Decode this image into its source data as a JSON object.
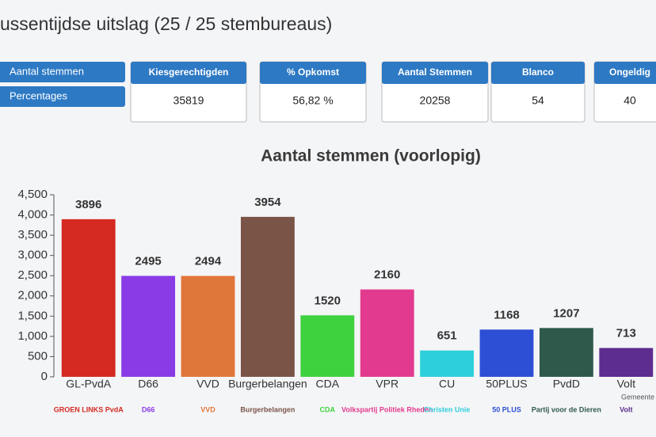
{
  "header": {
    "title": "ussentijdse uitslag (25 / 25 stembureaus)"
  },
  "buttons": [
    "Aantal stemmen",
    "Percentages"
  ],
  "stats": [
    {
      "label": "Kiesgerechtigden",
      "value": "35819"
    },
    {
      "label": "% Opkomst",
      "value": "56,82 %"
    },
    {
      "label": "Aantal Stemmen",
      "value": "20258"
    },
    {
      "label": "Blanco",
      "value": "54"
    },
    {
      "label": "Ongeldig",
      "value": "40"
    }
  ],
  "chart_data": {
    "type": "bar",
    "title": "Aantal stemmen (voorlopig)",
    "categories": [
      "GL-PvdA",
      "D66",
      "VVD",
      "Burgerbelangen",
      "CDA",
      "VPR",
      "CU",
      "50PLUS",
      "PvdD",
      "Volt"
    ],
    "values": [
      3896,
      2495,
      2494,
      3954,
      1520,
      2160,
      651,
      1168,
      1207,
      713
    ],
    "colors": [
      "#d42a22",
      "#8a3be6",
      "#e0773a",
      "#7a5447",
      "#3ed23e",
      "#e23a8e",
      "#2ecfdc",
      "#2d4fd6",
      "#2f5a4b",
      "#5d2d8f"
    ],
    "ylim": [
      0,
      4500
    ],
    "yticks": [
      0,
      500,
      {
        "value": 1000,
        "label": "1,000"
      },
      {
        "value": 1500,
        "label": "1,500"
      },
      {
        "value": 2000,
        "label": "2,000"
      },
      {
        "value": 2500,
        "label": "2,500"
      },
      {
        "value": 3000,
        "label": "3,000"
      },
      {
        "value": 3500,
        "label": "3,500"
      },
      {
        "value": 4000,
        "label": "4,000"
      },
      {
        "value": 4500,
        "label": "4,500"
      }
    ],
    "grid": false
  },
  "logos": [
    "GROEN LINKS PvdA",
    "D66",
    "VVD",
    "Burgerbelangen",
    "CDA",
    "Volkspartij Politiek Rheden",
    "Christen Unie",
    "50 PLUS",
    "Partij voor de Dieren",
    "Volt"
  ],
  "footer": "Gemeente"
}
